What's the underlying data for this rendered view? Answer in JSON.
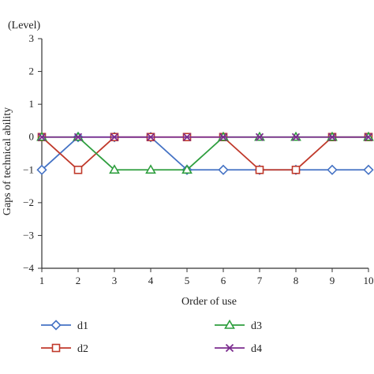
{
  "chart_data": {
    "type": "line",
    "unit_label": "(Level)",
    "xlabel": "Order of use",
    "ylabel": "Gaps of technical ability",
    "x": [
      1,
      2,
      3,
      4,
      5,
      6,
      7,
      8,
      9,
      10
    ],
    "xlim": [
      1,
      10
    ],
    "ylim": [
      -4,
      3
    ],
    "y_ticks": [
      3,
      2,
      1,
      0,
      -1,
      -2,
      -3,
      -4
    ],
    "y_tick_labels": [
      "3",
      "2",
      "1",
      "0",
      "−1",
      "−2",
      "−3",
      "−4"
    ],
    "x_tick_labels": [
      "1",
      "2",
      "3",
      "4",
      "5",
      "6",
      "7",
      "8",
      "9",
      "10"
    ],
    "grid": false,
    "legend_position": "bottom",
    "series": [
      {
        "name": "d1",
        "marker": "diamond",
        "color": "#4472C4",
        "values": [
          -1,
          0,
          0,
          0,
          -1,
          -1,
          -1,
          -1,
          -1,
          -1
        ]
      },
      {
        "name": "d2",
        "marker": "square",
        "color": "#C0392B",
        "values": [
          0,
          -1,
          0,
          0,
          0,
          0,
          -1,
          -1,
          0,
          0
        ]
      },
      {
        "name": "d3",
        "marker": "triangle",
        "color": "#2E9E3E",
        "values": [
          0,
          0,
          -1,
          -1,
          -1,
          0,
          0,
          0,
          0,
          0
        ]
      },
      {
        "name": "d4",
        "marker": "x",
        "color": "#7B2C8E",
        "values": [
          0,
          0,
          0,
          0,
          0,
          0,
          0,
          0,
          0,
          0
        ]
      }
    ]
  }
}
